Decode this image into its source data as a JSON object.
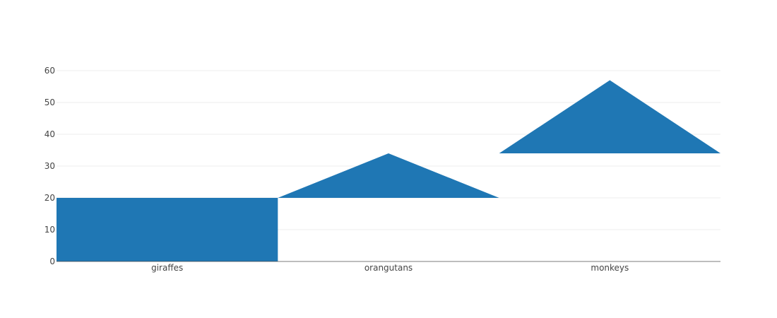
{
  "chart_data": {
    "type": "waterfall",
    "categories": [
      "giraffes",
      "orangutans",
      "monkeys"
    ],
    "values": [
      20,
      14,
      23
    ],
    "measure": [
      "relative",
      "relative",
      "relative"
    ],
    "cumulative": [
      20,
      34,
      57
    ],
    "shape": [
      "rectangle",
      "triangle",
      "triangle"
    ],
    "ylim": [
      0,
      60
    ],
    "yticks": [
      0,
      10,
      20,
      30,
      40,
      50,
      60
    ],
    "bar_color": "#1f77b4",
    "grid": true,
    "title": "",
    "xlabel": "",
    "ylabel": ""
  }
}
